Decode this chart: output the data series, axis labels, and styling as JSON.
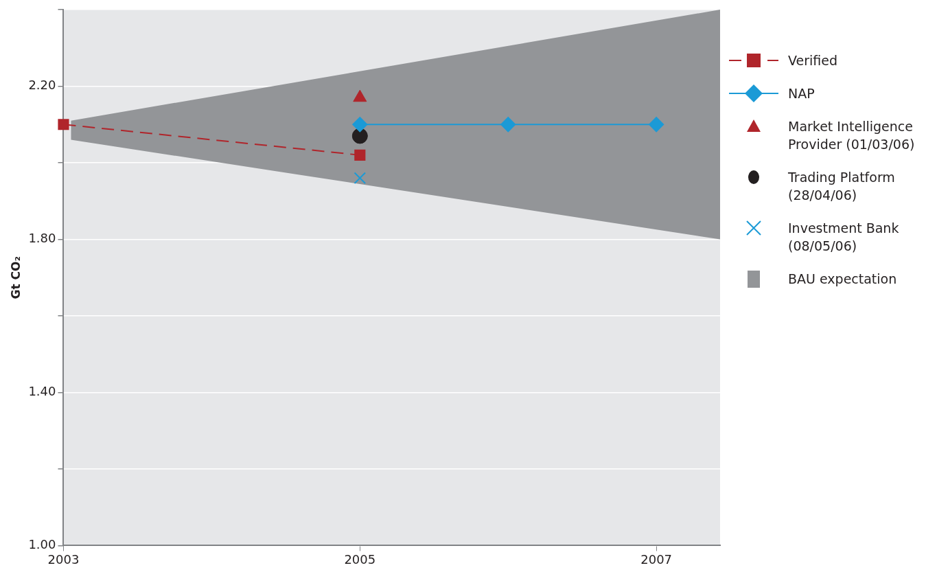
{
  "chart_data": {
    "type": "line",
    "ylabel": "Gt CO₂",
    "xlim": [
      2003,
      2007.43
    ],
    "xticks": [
      2003,
      2005,
      2007
    ],
    "ylim": [
      1.0,
      2.4
    ],
    "yticks": [
      {
        "value": 1.0,
        "label": "1.00"
      },
      {
        "value": 1.2,
        "label": null
      },
      {
        "value": 1.4,
        "label": "1.40"
      },
      {
        "value": 1.6,
        "label": null
      },
      {
        "value": 1.8,
        "label": "1.80"
      },
      {
        "value": 2.0,
        "label": null
      },
      {
        "value": 2.2,
        "label": "2.20"
      },
      {
        "value": 2.4,
        "label": null
      }
    ],
    "grid": "y",
    "legend": "right",
    "series": [
      {
        "name": "Verified",
        "type": "line",
        "color": "#b0252b",
        "line_style": "dashed",
        "marker": "square",
        "x": [
          2003,
          2005
        ],
        "values": [
          2.1,
          2.02
        ]
      },
      {
        "name": "NAP",
        "type": "line",
        "color": "#1b9ad6",
        "line_style": "solid",
        "marker": "diamond",
        "x": [
          2005,
          2006,
          2007
        ],
        "values": [
          2.1,
          2.1,
          2.1
        ]
      },
      {
        "name": "Market Intelligence Provider (01/03/06)",
        "type": "scatter",
        "color": "#b0252b",
        "marker": "triangle",
        "x": [
          2005
        ],
        "values": [
          2.17
        ]
      },
      {
        "name": "Trading Platform (28/04/06)",
        "type": "scatter",
        "color": "#231f20",
        "marker": "circle",
        "x": [
          2005
        ],
        "values": [
          2.07
        ]
      },
      {
        "name": "Investment Bank (08/05/06)",
        "type": "scatter",
        "color": "#1b9ad6",
        "marker": "cross",
        "x": [
          2005
        ],
        "values": [
          1.96
        ]
      },
      {
        "name": "BAU expectation",
        "type": "area",
        "color": "#939598",
        "x": [
          2003.05,
          2007.43
        ],
        "values": [
          null,
          null
        ],
        "lower": [
          2.06,
          1.8
        ],
        "upper": [
          2.11,
          2.4
        ]
      }
    ]
  }
}
